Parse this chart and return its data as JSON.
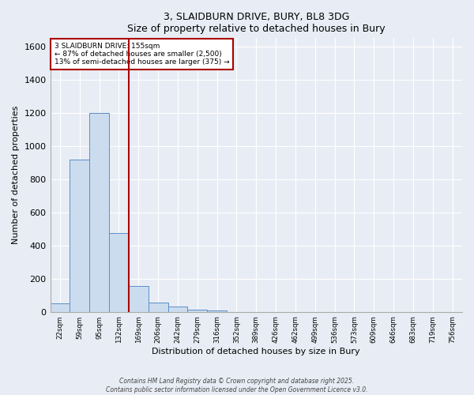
{
  "title_line1": "3, SLAIDBURN DRIVE, BURY, BL8 3DG",
  "title_line2": "Size of property relative to detached houses in Bury",
  "xlabel": "Distribution of detached houses by size in Bury",
  "ylabel": "Number of detached properties",
  "bin_labels": [
    "22sqm",
    "59sqm",
    "95sqm",
    "132sqm",
    "169sqm",
    "206sqm",
    "242sqm",
    "279sqm",
    "316sqm",
    "352sqm",
    "389sqm",
    "426sqm",
    "462sqm",
    "499sqm",
    "536sqm",
    "573sqm",
    "609sqm",
    "646sqm",
    "683sqm",
    "719sqm",
    "756sqm"
  ],
  "bar_values": [
    50,
    920,
    1200,
    475,
    155,
    55,
    30,
    15,
    10,
    0,
    0,
    0,
    0,
    0,
    0,
    0,
    0,
    0,
    0,
    0,
    0
  ],
  "bar_color": "#ccdcef",
  "bar_edge_color": "#5b8ec4",
  "ylim": [
    0,
    1650
  ],
  "yticks": [
    0,
    200,
    400,
    600,
    800,
    1000,
    1200,
    1400,
    1600
  ],
  "property_bin_index": 3.5,
  "annotation_title": "3 SLAIDBURN DRIVE: 155sqm",
  "annotation_line1": "← 87% of detached houses are smaller (2,500)",
  "annotation_line2": "13% of semi-detached houses are larger (375) →",
  "vline_color": "#aa0000",
  "annotation_box_color": "#aa0000",
  "fig_bg_color": "#e8edf5",
  "ax_bg_color": "#e8edf5",
  "grid_color": "#ffffff",
  "footer_line1": "Contains HM Land Registry data © Crown copyright and database right 2025.",
  "footer_line2": "Contains public sector information licensed under the Open Government Licence v3.0."
}
